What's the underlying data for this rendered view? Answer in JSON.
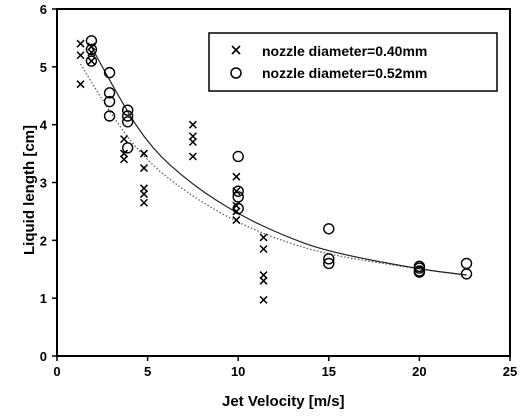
{
  "chart_data": {
    "type": "scatter",
    "xlabel": "Jet Velocity  [m/s]",
    "ylabel": "Liquid length [cm]",
    "xlim": [
      0,
      25
    ],
    "ylim": [
      0,
      6
    ],
    "xticks": [
      "0",
      "5",
      "10",
      "15",
      "20",
      "25"
    ],
    "yticks": [
      "0",
      "1",
      "2",
      "3",
      "4",
      "5",
      "6"
    ],
    "grid": false,
    "legend_position": "top-right",
    "series": [
      {
        "name": "nozzle diameter=0.40mm",
        "marker": "x",
        "points": [
          [
            1.3,
            5.4
          ],
          [
            1.3,
            5.2
          ],
          [
            1.3,
            4.7
          ],
          [
            1.9,
            5.35
          ],
          [
            1.9,
            5.25
          ],
          [
            1.9,
            5.1
          ],
          [
            3.7,
            3.75
          ],
          [
            3.7,
            3.5
          ],
          [
            3.7,
            3.4
          ],
          [
            4.8,
            3.5
          ],
          [
            4.8,
            3.25
          ],
          [
            4.8,
            2.9
          ],
          [
            4.8,
            2.8
          ],
          [
            4.8,
            2.65
          ],
          [
            7.5,
            4.0
          ],
          [
            7.5,
            3.8
          ],
          [
            7.5,
            3.7
          ],
          [
            7.5,
            3.45
          ],
          [
            9.9,
            3.1
          ],
          [
            9.9,
            2.85
          ],
          [
            9.9,
            2.6
          ],
          [
            9.9,
            2.5
          ],
          [
            9.9,
            2.35
          ],
          [
            11.4,
            2.05
          ],
          [
            11.4,
            1.85
          ],
          [
            11.4,
            1.4
          ],
          [
            11.4,
            1.3
          ],
          [
            11.4,
            0.97
          ]
        ]
      },
      {
        "name": "nozzle diameter=0.52mm",
        "marker": "o",
        "points": [
          [
            1.9,
            5.45
          ],
          [
            1.9,
            5.3
          ],
          [
            1.9,
            5.1
          ],
          [
            2.9,
            4.9
          ],
          [
            2.9,
            4.55
          ],
          [
            2.9,
            4.4
          ],
          [
            2.9,
            4.15
          ],
          [
            3.9,
            4.25
          ],
          [
            3.9,
            4.15
          ],
          [
            3.9,
            4.05
          ],
          [
            3.9,
            3.6
          ],
          [
            10.0,
            3.45
          ],
          [
            10.0,
            2.85
          ],
          [
            10.0,
            2.75
          ],
          [
            10.0,
            2.55
          ],
          [
            15.0,
            2.2
          ],
          [
            15.0,
            1.68
          ],
          [
            15.0,
            1.6
          ],
          [
            20.0,
            1.55
          ],
          [
            20.0,
            1.52
          ],
          [
            20.0,
            1.47
          ],
          [
            20.0,
            1.45
          ],
          [
            22.6,
            1.6
          ],
          [
            22.6,
            1.42
          ]
        ]
      }
    ],
    "fit_curves": [
      {
        "series": "nozzle diameter=0.40mm",
        "style": "dotted",
        "points": [
          [
            1.3,
            5.05
          ],
          [
            3,
            4.15
          ],
          [
            5,
            3.35
          ],
          [
            7.5,
            2.75
          ],
          [
            10,
            2.3
          ],
          [
            12.5,
            1.98
          ],
          [
            15,
            1.75
          ],
          [
            20,
            1.5
          ],
          [
            22.6,
            1.4
          ]
        ]
      },
      {
        "series": "nozzle diameter=0.52mm",
        "style": "solid",
        "points": [
          [
            1.9,
            5.35
          ],
          [
            3,
            4.7
          ],
          [
            5,
            3.65
          ],
          [
            7.5,
            2.95
          ],
          [
            10,
            2.45
          ],
          [
            12.5,
            2.08
          ],
          [
            15,
            1.8
          ],
          [
            20,
            1.5
          ],
          [
            22.6,
            1.4
          ]
        ]
      }
    ]
  }
}
